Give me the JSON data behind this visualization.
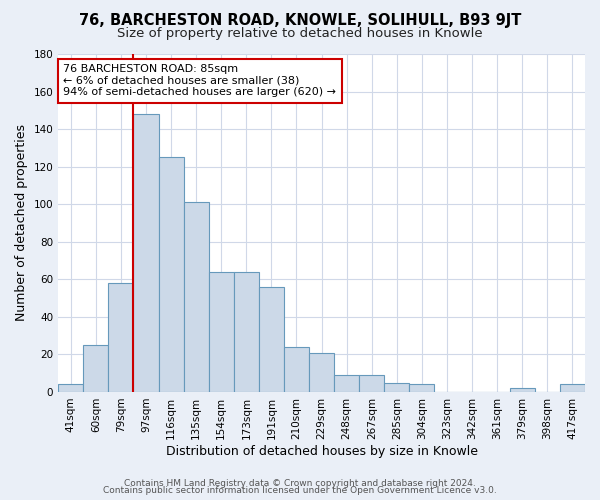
{
  "title": "76, BARCHESTON ROAD, KNOWLE, SOLIHULL, B93 9JT",
  "subtitle": "Size of property relative to detached houses in Knowle",
  "xlabel": "Distribution of detached houses by size in Knowle",
  "ylabel": "Number of detached properties",
  "bar_labels": [
    "41sqm",
    "60sqm",
    "79sqm",
    "97sqm",
    "116sqm",
    "135sqm",
    "154sqm",
    "173sqm",
    "191sqm",
    "210sqm",
    "229sqm",
    "248sqm",
    "267sqm",
    "285sqm",
    "304sqm",
    "323sqm",
    "342sqm",
    "361sqm",
    "379sqm",
    "398sqm",
    "417sqm"
  ],
  "bar_values": [
    4,
    25,
    58,
    148,
    125,
    101,
    64,
    64,
    56,
    24,
    21,
    9,
    9,
    5,
    4,
    0,
    0,
    0,
    2,
    0,
    4
  ],
  "bar_color": "#ccd9e8",
  "bar_edge_color": "#6699bb",
  "vline_x_index": 2,
  "vline_color": "#cc0000",
  "annotation_text": "76 BARCHESTON ROAD: 85sqm\n← 6% of detached houses are smaller (38)\n94% of semi-detached houses are larger (620) →",
  "annotation_box_color": "#ffffff",
  "annotation_box_edge": "#cc0000",
  "ylim": [
    0,
    180
  ],
  "yticks": [
    0,
    20,
    40,
    60,
    80,
    100,
    120,
    140,
    160,
    180
  ],
  "footer1": "Contains HM Land Registry data © Crown copyright and database right 2024.",
  "footer2": "Contains public sector information licensed under the Open Government Licence v3.0.",
  "fig_background_color": "#eaeff7",
  "plot_background_color": "#ffffff",
  "grid_color": "#d0d8e8",
  "title_fontsize": 10.5,
  "subtitle_fontsize": 9.5,
  "axis_label_fontsize": 9,
  "tick_fontsize": 7.5,
  "footer_fontsize": 6.5,
  "annotation_fontsize": 8
}
